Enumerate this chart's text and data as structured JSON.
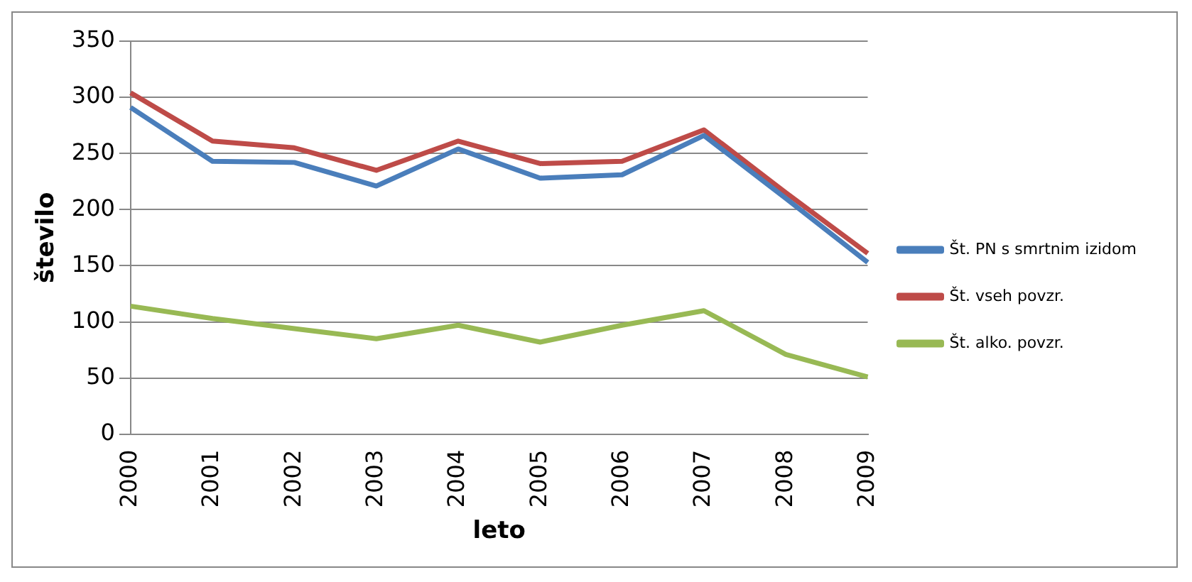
{
  "chart_data": {
    "type": "line",
    "xlabel": "leto",
    "ylabel": "število",
    "categories": [
      "2000",
      "2001",
      "2002",
      "2003",
      "2004",
      "2005",
      "2006",
      "2007",
      "2008",
      "2009"
    ],
    "series": [
      {
        "name": "Št. PN s smrtnim izidom",
        "color": "#4a7ebb",
        "values": [
          291,
          243,
          242,
          221,
          254,
          228,
          231,
          266,
          210,
          153
        ]
      },
      {
        "name": "Št. vseh povzr.",
        "color": "#be4b48",
        "values": [
          304,
          261,
          255,
          235,
          261,
          241,
          243,
          271,
          215,
          161
        ]
      },
      {
        "name": "Št. alko. povzr.",
        "color": "#98b954",
        "values": [
          114,
          103,
          94,
          85,
          97,
          82,
          97,
          110,
          71,
          51
        ]
      }
    ],
    "ylim": [
      0,
      350
    ],
    "yticks": [
      0,
      50,
      100,
      150,
      200,
      250,
      300,
      350
    ],
    "grid": "y",
    "legend": "right",
    "marker": "none",
    "line_style": "solid"
  }
}
